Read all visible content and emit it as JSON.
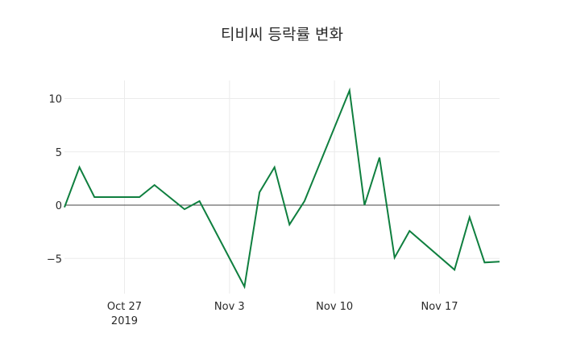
{
  "chart_data": {
    "type": "line",
    "title": "티비씨 등락률 변화",
    "xlabel": "",
    "ylabel": "",
    "x": [
      "2019-10-23",
      "2019-10-24",
      "2019-10-25",
      "2019-10-28",
      "2019-10-29",
      "2019-10-31",
      "2019-11-01",
      "2019-11-04",
      "2019-11-05",
      "2019-11-06",
      "2019-11-07",
      "2019-11-08",
      "2019-11-11",
      "2019-11-12",
      "2019-11-13",
      "2019-11-14",
      "2019-11-15",
      "2019-11-18",
      "2019-11-19",
      "2019-11-20",
      "2019-11-21"
    ],
    "series": [
      {
        "name": "등락률",
        "color": "#0f7f3f",
        "values": [
          -0.2,
          3.56,
          0.76,
          0.76,
          1.89,
          -0.38,
          0.38,
          -7.65,
          1.21,
          3.56,
          -1.82,
          0.38,
          10.76,
          0.0,
          4.47,
          -4.92,
          -2.42,
          -6.06,
          -1.14,
          -5.38,
          -5.3
        ]
      }
    ],
    "xticks": [
      {
        "date": "2019-10-27",
        "label": "Oct 27",
        "sublabel": "2019"
      },
      {
        "date": "2019-11-03",
        "label": "Nov 3",
        "sublabel": ""
      },
      {
        "date": "2019-11-10",
        "label": "Nov 10",
        "sublabel": ""
      },
      {
        "date": "2019-11-17",
        "label": "Nov 17",
        "sublabel": ""
      }
    ],
    "yticks": [
      {
        "value": 10,
        "label": "10"
      },
      {
        "value": 5,
        "label": "5"
      },
      {
        "value": 0,
        "label": "0"
      },
      {
        "value": -5,
        "label": "−5"
      }
    ],
    "xlim": [
      "2019-10-23",
      "2019-11-21"
    ],
    "ylim": [
      -8.3,
      11.7
    ],
    "grid": true,
    "zero_line": true,
    "legend": "none"
  }
}
